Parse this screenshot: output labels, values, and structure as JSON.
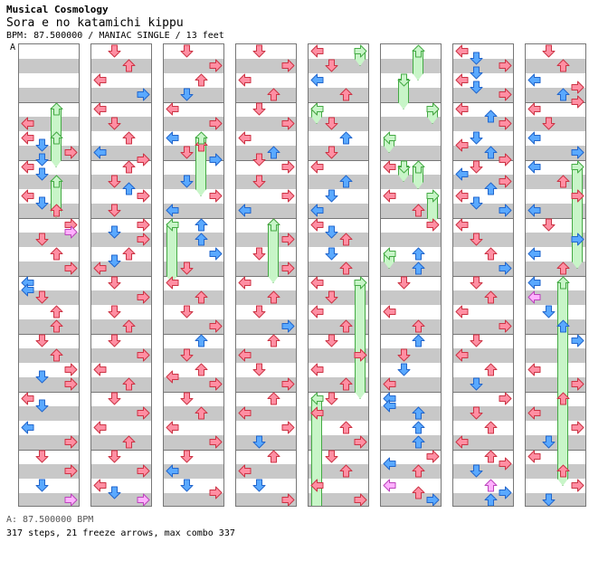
{
  "chart": {
    "artist": "Musical Cosmology",
    "song_title": "Sora e no katamichi kippu",
    "meta_line": "BPM: 87.500000 / MANIAC SINGLE / 13 feet",
    "section_label": "A",
    "bpm_note": "A: 87.500000 BPM",
    "summary": "317 steps, 21 freeze arrows, max combo 337"
  },
  "colors": {
    "quarter": "#ff8fa3",
    "eighth": "#5aa9ff",
    "sixteenth": "#ffb0ff",
    "freeze_fill": "#c8f5c8",
    "freeze_border": "#44aa44",
    "stripe": "#c8c8c8"
  },
  "columns": [
    {
      "notes": [
        [
          2.5,
          0,
          "q"
        ],
        [
          3,
          0,
          "q"
        ],
        [
          3.25,
          1,
          "e"
        ],
        [
          3.5,
          3,
          "q"
        ],
        [
          3.75,
          1,
          "e"
        ],
        [
          4,
          0,
          "q"
        ],
        [
          4.25,
          1,
          "e"
        ],
        [
          5,
          0,
          "q"
        ],
        [
          5.25,
          1,
          "e"
        ],
        [
          5.5,
          2,
          "q"
        ],
        [
          6,
          3,
          "q"
        ],
        [
          6.25,
          3,
          "s"
        ],
        [
          6.5,
          1,
          "q"
        ],
        [
          7,
          2,
          "q"
        ],
        [
          7.5,
          3,
          "q"
        ],
        [
          8,
          0,
          "e"
        ],
        [
          8.25,
          0,
          "e"
        ],
        [
          8.5,
          1,
          "q"
        ],
        [
          9,
          2,
          "q"
        ],
        [
          9.5,
          2,
          "q"
        ],
        [
          10,
          1,
          "q"
        ],
        [
          10.5,
          2,
          "q"
        ],
        [
          11,
          3,
          "q"
        ],
        [
          11.25,
          1,
          "e"
        ],
        [
          11.5,
          3,
          "q"
        ],
        [
          12,
          0,
          "q"
        ],
        [
          12.25,
          1,
          "e"
        ],
        [
          13,
          0,
          "e"
        ],
        [
          13.5,
          3,
          "q"
        ],
        [
          14,
          1,
          "q"
        ],
        [
          14.5,
          3,
          "q"
        ],
        [
          15,
          1,
          "e"
        ],
        [
          15.5,
          3,
          "s"
        ]
      ],
      "freezes": [
        [
          2,
          2,
          3.5
        ],
        [
          3,
          2,
          4
        ],
        [
          4.5,
          2,
          5.75
        ]
      ]
    },
    {
      "notes": [
        [
          0,
          1,
          "q"
        ],
        [
          0.5,
          2,
          "q"
        ],
        [
          1,
          0,
          "q"
        ],
        [
          1.5,
          3,
          "e"
        ],
        [
          2,
          0,
          "q"
        ],
        [
          2.5,
          1,
          "q"
        ],
        [
          3,
          2,
          "q"
        ],
        [
          3.5,
          0,
          "e"
        ],
        [
          3.75,
          3,
          "q"
        ],
        [
          4,
          2,
          "q"
        ],
        [
          4.5,
          1,
          "q"
        ],
        [
          4.75,
          2,
          "e"
        ],
        [
          5,
          3,
          "q"
        ],
        [
          5.5,
          1,
          "q"
        ],
        [
          6,
          3,
          "q"
        ],
        [
          6.25,
          1,
          "e"
        ],
        [
          6.5,
          3,
          "q"
        ],
        [
          7,
          2,
          "q"
        ],
        [
          7.25,
          1,
          "e"
        ],
        [
          7.5,
          0,
          "q"
        ],
        [
          8,
          1,
          "q"
        ],
        [
          8.5,
          3,
          "q"
        ],
        [
          9,
          1,
          "q"
        ],
        [
          9.5,
          2,
          "q"
        ],
        [
          10,
          1,
          "q"
        ],
        [
          10.5,
          3,
          "q"
        ],
        [
          11,
          0,
          "q"
        ],
        [
          11.5,
          2,
          "q"
        ],
        [
          12,
          1,
          "q"
        ],
        [
          12.5,
          3,
          "q"
        ],
        [
          13,
          0,
          "q"
        ],
        [
          13.5,
          2,
          "q"
        ],
        [
          14,
          1,
          "q"
        ],
        [
          14.5,
          3,
          "q"
        ],
        [
          15,
          0,
          "q"
        ],
        [
          15.25,
          1,
          "e"
        ],
        [
          15.5,
          3,
          "s"
        ]
      ],
      "freezes": []
    },
    {
      "notes": [
        [
          0,
          1,
          "q"
        ],
        [
          0.5,
          3,
          "q"
        ],
        [
          1,
          2,
          "q"
        ],
        [
          1.5,
          1,
          "e"
        ],
        [
          2,
          0,
          "q"
        ],
        [
          2.5,
          3,
          "q"
        ],
        [
          3,
          0,
          "e"
        ],
        [
          3.25,
          2,
          "q"
        ],
        [
          3.5,
          1,
          "q"
        ],
        [
          3.75,
          3,
          "e"
        ],
        [
          4.5,
          1,
          "e"
        ],
        [
          5,
          3,
          "q"
        ],
        [
          5.5,
          0,
          "e"
        ],
        [
          6,
          2,
          "e"
        ],
        [
          6.5,
          2,
          "e"
        ],
        [
          7,
          3,
          "e"
        ],
        [
          7.5,
          1,
          "q"
        ],
        [
          8,
          0,
          "q"
        ],
        [
          8.5,
          2,
          "q"
        ],
        [
          9,
          1,
          "q"
        ],
        [
          9.5,
          3,
          "q"
        ],
        [
          10,
          2,
          "e"
        ],
        [
          10.5,
          1,
          "q"
        ],
        [
          11,
          2,
          "q"
        ],
        [
          11.25,
          0,
          "q"
        ],
        [
          11.5,
          3,
          "q"
        ],
        [
          12,
          1,
          "q"
        ],
        [
          12.5,
          2,
          "q"
        ],
        [
          13,
          0,
          "q"
        ],
        [
          13.5,
          3,
          "q"
        ],
        [
          14,
          1,
          "q"
        ],
        [
          14.5,
          0,
          "e"
        ],
        [
          15,
          1,
          "e"
        ],
        [
          15.25,
          3,
          "q"
        ]
      ],
      "freezes": [
        [
          3,
          2,
          5
        ],
        [
          6,
          0,
          8
        ]
      ]
    },
    {
      "notes": [
        [
          0,
          1,
          "q"
        ],
        [
          0.5,
          3,
          "q"
        ],
        [
          1,
          0,
          "q"
        ],
        [
          1.5,
          2,
          "q"
        ],
        [
          2,
          1,
          "q"
        ],
        [
          2.5,
          3,
          "q"
        ],
        [
          3,
          0,
          "q"
        ],
        [
          3.5,
          2,
          "e"
        ],
        [
          3.75,
          1,
          "q"
        ],
        [
          4,
          3,
          "q"
        ],
        [
          4.5,
          1,
          "q"
        ],
        [
          5,
          3,
          "q"
        ],
        [
          5.5,
          0,
          "e"
        ],
        [
          6,
          2,
          "q"
        ],
        [
          6.5,
          3,
          "q"
        ],
        [
          7,
          1,
          "q"
        ],
        [
          7.5,
          3,
          "q"
        ],
        [
          8,
          0,
          "q"
        ],
        [
          8.5,
          2,
          "q"
        ],
        [
          9,
          1,
          "q"
        ],
        [
          9.5,
          3,
          "e"
        ],
        [
          10,
          2,
          "q"
        ],
        [
          10.5,
          0,
          "q"
        ],
        [
          11,
          1,
          "q"
        ],
        [
          11.5,
          3,
          "q"
        ],
        [
          12,
          2,
          "q"
        ],
        [
          12.5,
          0,
          "q"
        ],
        [
          13,
          3,
          "q"
        ],
        [
          13.5,
          1,
          "e"
        ],
        [
          14,
          2,
          "q"
        ],
        [
          14.5,
          0,
          "q"
        ],
        [
          15,
          1,
          "e"
        ],
        [
          15.5,
          3,
          "q"
        ]
      ],
      "freezes": [
        [
          6,
          2,
          8
        ]
      ]
    },
    {
      "notes": [
        [
          0,
          0,
          "q"
        ],
        [
          0.5,
          1,
          "q"
        ],
        [
          1,
          0,
          "e"
        ],
        [
          1.5,
          2,
          "q"
        ],
        [
          2,
          0,
          "q"
        ],
        [
          2.5,
          1,
          "q"
        ],
        [
          3,
          2,
          "e"
        ],
        [
          3.5,
          1,
          "q"
        ],
        [
          4,
          0,
          "q"
        ],
        [
          4.5,
          2,
          "e"
        ],
        [
          5,
          1,
          "e"
        ],
        [
          5.5,
          0,
          "e"
        ],
        [
          6,
          0,
          "q"
        ],
        [
          6.25,
          1,
          "e"
        ],
        [
          6.5,
          2,
          "q"
        ],
        [
          7,
          1,
          "e"
        ],
        [
          7.5,
          2,
          "q"
        ],
        [
          8,
          0,
          "q"
        ],
        [
          8.5,
          1,
          "q"
        ],
        [
          9,
          0,
          "q"
        ],
        [
          9.5,
          2,
          "q"
        ],
        [
          10,
          1,
          "q"
        ],
        [
          10.5,
          3,
          "q"
        ],
        [
          11,
          0,
          "q"
        ],
        [
          11.5,
          2,
          "q"
        ],
        [
          12,
          1,
          "q"
        ],
        [
          12.5,
          0,
          "q"
        ],
        [
          13,
          2,
          "q"
        ],
        [
          13.5,
          3,
          "q"
        ],
        [
          14,
          1,
          "q"
        ],
        [
          14.5,
          2,
          "q"
        ],
        [
          15,
          0,
          "q"
        ],
        [
          15.5,
          3,
          "q"
        ]
      ],
      "freezes": [
        [
          0,
          3,
          0.5
        ],
        [
          2,
          0,
          2.5
        ],
        [
          8,
          3,
          12
        ],
        [
          12,
          0,
          16
        ]
      ]
    },
    {
      "notes": [
        [
          2,
          3,
          "q"
        ],
        [
          4,
          0,
          "q"
        ],
        [
          5,
          0,
          "q"
        ],
        [
          5.5,
          2,
          "q"
        ],
        [
          6,
          3,
          "q"
        ],
        [
          7,
          2,
          "e"
        ],
        [
          7.5,
          2,
          "e"
        ],
        [
          8,
          1,
          "q"
        ],
        [
          9,
          0,
          "q"
        ],
        [
          9.5,
          2,
          "q"
        ],
        [
          10,
          2,
          "e"
        ],
        [
          10.5,
          1,
          "q"
        ],
        [
          11,
          1,
          "e"
        ],
        [
          11.5,
          0,
          "q"
        ],
        [
          12,
          0,
          "e"
        ],
        [
          12.25,
          0,
          "e"
        ],
        [
          12.5,
          2,
          "e"
        ],
        [
          13,
          2,
          "e"
        ],
        [
          13.5,
          2,
          "e"
        ],
        [
          14,
          3,
          "q"
        ],
        [
          14.25,
          0,
          "e"
        ],
        [
          14.5,
          2,
          "q"
        ],
        [
          15,
          0,
          "s"
        ],
        [
          15.25,
          2,
          "q"
        ],
        [
          15.5,
          3,
          "e"
        ]
      ],
      "freezes": [
        [
          0,
          2,
          1
        ],
        [
          1,
          1,
          2
        ],
        [
          2,
          3,
          2.5
        ],
        [
          3,
          0,
          3.5
        ],
        [
          4,
          1,
          4.5
        ],
        [
          4,
          2,
          4.75
        ],
        [
          5,
          3,
          6
        ],
        [
          7,
          0,
          7.5
        ]
      ]
    },
    {
      "notes": [
        [
          0,
          0,
          "q"
        ],
        [
          0.25,
          1,
          "e"
        ],
        [
          0.5,
          3,
          "q"
        ],
        [
          0.75,
          1,
          "e"
        ],
        [
          1,
          0,
          "q"
        ],
        [
          1.25,
          1,
          "e"
        ],
        [
          1.5,
          3,
          "q"
        ],
        [
          2,
          0,
          "q"
        ],
        [
          2.25,
          2,
          "e"
        ],
        [
          2.5,
          3,
          "q"
        ],
        [
          3,
          1,
          "e"
        ],
        [
          3.25,
          0,
          "q"
        ],
        [
          3.5,
          2,
          "e"
        ],
        [
          3.75,
          3,
          "q"
        ],
        [
          4,
          1,
          "q"
        ],
        [
          4.25,
          0,
          "e"
        ],
        [
          4.5,
          3,
          "q"
        ],
        [
          4.75,
          2,
          "e"
        ],
        [
          5,
          0,
          "q"
        ],
        [
          5.25,
          1,
          "e"
        ],
        [
          5.5,
          3,
          "e"
        ],
        [
          6,
          0,
          "q"
        ],
        [
          6.5,
          1,
          "q"
        ],
        [
          7,
          2,
          "q"
        ],
        [
          7.5,
          3,
          "e"
        ],
        [
          8,
          1,
          "q"
        ],
        [
          8.5,
          2,
          "q"
        ],
        [
          9,
          0,
          "q"
        ],
        [
          9.5,
          3,
          "q"
        ],
        [
          10,
          1,
          "q"
        ],
        [
          10.5,
          0,
          "q"
        ],
        [
          11,
          2,
          "q"
        ],
        [
          11.5,
          1,
          "e"
        ],
        [
          12,
          3,
          "q"
        ],
        [
          12.5,
          1,
          "q"
        ],
        [
          13,
          2,
          "q"
        ],
        [
          13.5,
          0,
          "q"
        ],
        [
          14,
          2,
          "q"
        ],
        [
          14.25,
          3,
          "q"
        ],
        [
          14.5,
          1,
          "e"
        ],
        [
          15,
          2,
          "s"
        ],
        [
          15.25,
          3,
          "e"
        ],
        [
          15.5,
          2,
          "e"
        ]
      ],
      "freezes": []
    },
    {
      "notes": [
        [
          0,
          1,
          "q"
        ],
        [
          0.5,
          2,
          "q"
        ],
        [
          1,
          0,
          "e"
        ],
        [
          1.25,
          3,
          "q"
        ],
        [
          1.5,
          2,
          "e"
        ],
        [
          1.75,
          3,
          "q"
        ],
        [
          2,
          0,
          "q"
        ],
        [
          2.5,
          1,
          "q"
        ],
        [
          3,
          0,
          "e"
        ],
        [
          3.5,
          3,
          "e"
        ],
        [
          4,
          0,
          "e"
        ],
        [
          4.5,
          2,
          "q"
        ],
        [
          5,
          3,
          "q"
        ],
        [
          5.5,
          0,
          "e"
        ],
        [
          6,
          1,
          "q"
        ],
        [
          6.5,
          3,
          "e"
        ],
        [
          7,
          0,
          "e"
        ],
        [
          7.5,
          2,
          "q"
        ],
        [
          8,
          0,
          "e"
        ],
        [
          8.5,
          0,
          "s"
        ],
        [
          9,
          1,
          "e"
        ],
        [
          9.5,
          2,
          "e"
        ],
        [
          10,
          3,
          "e"
        ],
        [
          11,
          0,
          "q"
        ],
        [
          11.5,
          3,
          "q"
        ],
        [
          12,
          2,
          "q"
        ],
        [
          12.5,
          0,
          "q"
        ],
        [
          13,
          3,
          "q"
        ],
        [
          13.5,
          1,
          "e"
        ],
        [
          14,
          0,
          "q"
        ],
        [
          14.5,
          2,
          "q"
        ],
        [
          15,
          3,
          "q"
        ],
        [
          15.5,
          1,
          "e"
        ]
      ],
      "freezes": [
        [
          4,
          3,
          7.5
        ],
        [
          8,
          2,
          15
        ]
      ]
    }
  ]
}
